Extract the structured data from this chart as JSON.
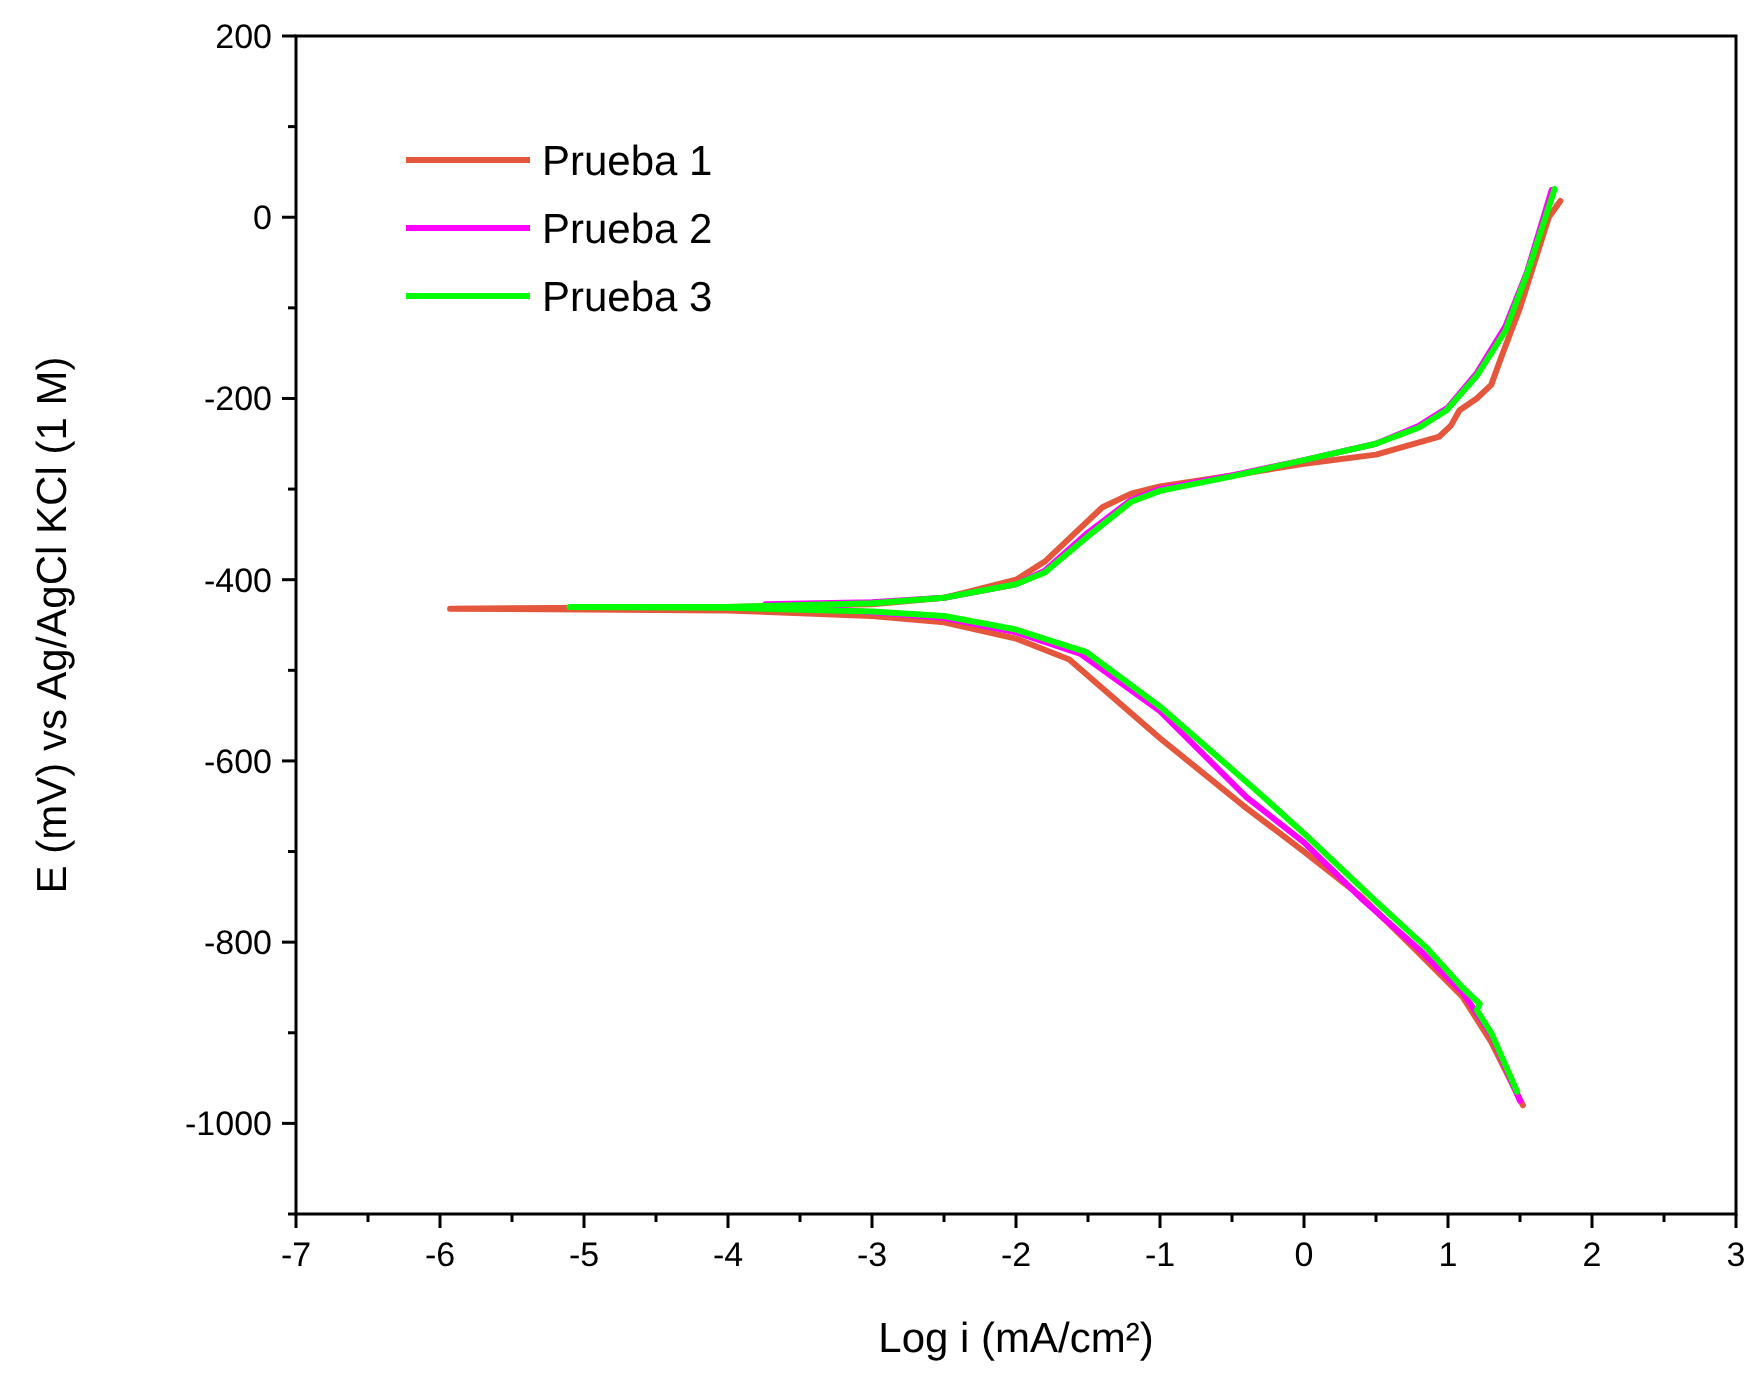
{
  "chart_data": {
    "type": "line",
    "xlabel": "Log i (mA/cm²)",
    "ylabel": "E (mV) vs Ag/AgCl KCl (1 M)",
    "xlim": [
      -7,
      3
    ],
    "ylim": [
      -1100,
      200
    ],
    "xticks": [
      -7,
      {
        "value": -6.5,
        "label": null
      },
      -6,
      {
        "value": -5.5,
        "label": null
      },
      -5,
      {
        "value": -4.5,
        "label": null
      },
      -4,
      {
        "value": -3.5,
        "label": null
      },
      -3,
      {
        "value": -2.5,
        "label": null
      },
      -2,
      {
        "value": -1.5,
        "label": null
      },
      -1,
      {
        "value": -0.5,
        "label": null
      },
      0,
      {
        "value": 0.5,
        "label": null
      },
      1,
      {
        "value": 1.5,
        "label": null
      },
      2,
      {
        "value": 2.5,
        "label": null
      },
      3
    ],
    "yticks": [
      {
        "value": -1100,
        "label": null
      },
      -1000,
      {
        "value": -900,
        "label": null
      },
      -800,
      {
        "value": -700,
        "label": null
      },
      -600,
      {
        "value": -500,
        "label": null
      },
      -400,
      {
        "value": -300,
        "label": null
      },
      -200,
      {
        "value": -100,
        "label": null
      },
      0,
      {
        "value": 100,
        "label": null
      },
      200
    ],
    "legend": "top left",
    "marker": "none",
    "line_style": "solid",
    "grid": false,
    "series": [
      {
        "name": "Prueba 1",
        "color": "#e4573d",
        "x": [
          1.52,
          1.3,
          1.1,
          0.76,
          0.4,
          0,
          -0.4,
          -1,
          -1.63,
          -2,
          -2.5,
          -3,
          -4,
          -5.93,
          -4,
          -3,
          -2.5,
          -2,
          -1.8,
          -1.6,
          -1.4,
          -1.2,
          -1,
          -0.5,
          0,
          0.5,
          0.94,
          1.02,
          1.08,
          1.2,
          1.3,
          1.38,
          1.5,
          1.6,
          1.7,
          1.78
        ],
        "values": [
          -980,
          -910,
          -860,
          -806,
          -750,
          -700,
          -652,
          -575,
          -488,
          -465,
          -447,
          -440,
          -434,
          -432,
          -430,
          -427,
          -420,
          -400,
          -380,
          -350,
          -320,
          -305,
          -297,
          -285,
          -272,
          -262,
          -242,
          -230,
          -213,
          -200,
          -185,
          -150,
          -100,
          -50,
          0,
          18
        ]
      },
      {
        "name": "Prueba 2",
        "color": "#ff00ff",
        "x": [
          1.5,
          1.3,
          1.1,
          0.8,
          0.4,
          0,
          -0.4,
          -1,
          -1.55,
          -2,
          -2.5,
          -3,
          -3.74,
          -3,
          -2.5,
          -2,
          -1.8,
          -1.5,
          -1.2,
          -1,
          -0.5,
          0,
          0.5,
          0.8,
          1,
          1.2,
          1.4,
          1.55,
          1.72
        ],
        "values": [
          -975,
          -902,
          -855,
          -808,
          -752,
          -690,
          -640,
          -545,
          -482,
          -458,
          -442,
          -436,
          -427,
          -425,
          -420,
          -405,
          -390,
          -348,
          -312,
          -300,
          -285,
          -268,
          -250,
          -230,
          -210,
          -172,
          -120,
          -60,
          30
        ]
      },
      {
        "name": "Prueba 3",
        "color": "#00ff00",
        "x": [
          1.48,
          1.3,
          1.2,
          1.22,
          1.1,
          0.85,
          0.5,
          0,
          -0.35,
          -1,
          -1.51,
          -2,
          -2.5,
          -3,
          -4,
          -5.1,
          -4,
          -3,
          -2.5,
          -2,
          -1.8,
          -1.5,
          -1.2,
          -1,
          -0.5,
          0,
          0.5,
          0.8,
          0.99,
          1.2,
          1.4,
          1.55,
          1.74
        ],
        "values": [
          -965,
          -900,
          -875,
          -868,
          -850,
          -806,
          -755,
          -680,
          -630,
          -540,
          -480,
          -455,
          -440,
          -435,
          -431,
          -430,
          -430,
          -426,
          -420,
          -405,
          -392,
          -352,
          -314,
          -302,
          -286,
          -268,
          -250,
          -232,
          -213,
          -175,
          -125,
          -62,
          31
        ]
      }
    ]
  }
}
